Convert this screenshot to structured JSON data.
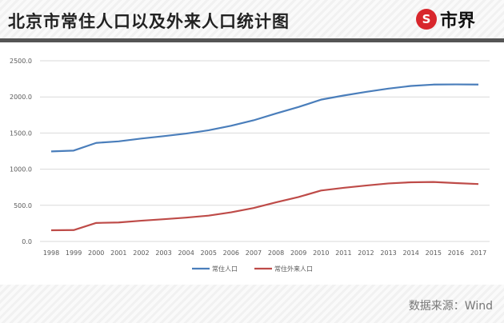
{
  "header": {
    "title": "北京市常住人口以及外来人口统计图",
    "logo_text": "市界",
    "logo_symbol": "S"
  },
  "footer": {
    "source": "数据来源：Wind"
  },
  "chart_data": {
    "type": "line",
    "title": "北京市常住人口以及外来人口统计图",
    "xlabel": "",
    "ylabel": "",
    "ylim": [
      0,
      2500
    ],
    "yticks": [
      "0.0",
      "500.0",
      "1000.0",
      "1500.0",
      "2000.0",
      "2500.0"
    ],
    "x": [
      "1998",
      "1999",
      "2000",
      "2001",
      "2002",
      "2003",
      "2004",
      "2005",
      "2006",
      "2007",
      "2008",
      "2009",
      "2010",
      "2011",
      "2012",
      "2013",
      "2014",
      "2015",
      "2016",
      "2017"
    ],
    "series": [
      {
        "name": "常住人口",
        "color": "#4a7ebb",
        "values": [
          1245.6,
          1257.2,
          1363.6,
          1385.1,
          1423.2,
          1456.4,
          1492.7,
          1538.0,
          1601.0,
          1676.0,
          1771.0,
          1860.0,
          1961.9,
          2018.6,
          2069.3,
          2114.8,
          2151.6,
          2170.5,
          2172.9,
          2170.7
        ]
      },
      {
        "name": "常住外来人口",
        "color": "#be4b48",
        "values": [
          154.5,
          157.4,
          256.1,
          262.8,
          286.9,
          307.6,
          329.8,
          357.3,
          403.4,
          462.7,
          541.1,
          614.2,
          704.7,
          742.2,
          773.8,
          802.7,
          818.7,
          822.6,
          807.5,
          794.3
        ]
      }
    ],
    "grid": true,
    "legend": "bottom"
  }
}
